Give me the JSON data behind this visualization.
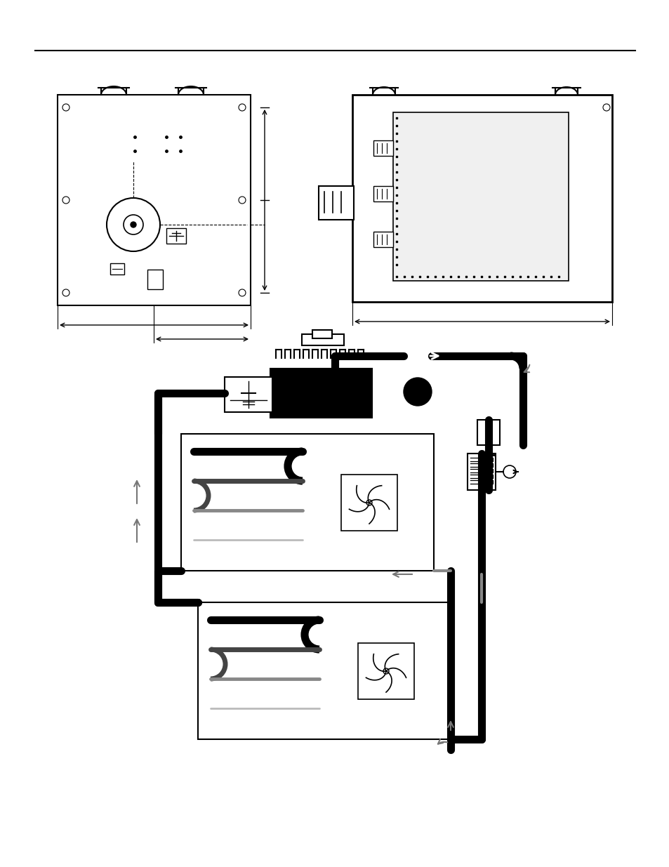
{
  "bg_color": "#ffffff",
  "line_color": "#000000",
  "gray_dark": "#444444",
  "gray_mid": "#888888",
  "gray_light": "#bbbbbb",
  "pipe_thick": 8,
  "pipe_thin": 3
}
